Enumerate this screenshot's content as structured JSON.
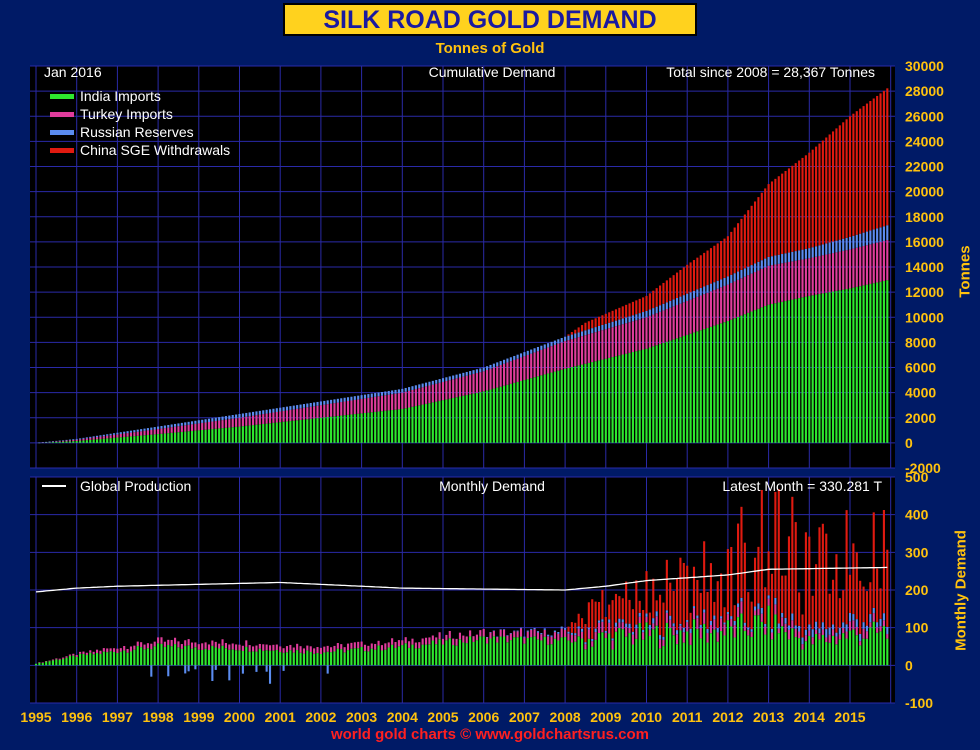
{
  "title": "SILK ROAD GOLD DEMAND",
  "subtitle": "Tonnes of Gold",
  "footer": "world gold charts © www.goldchartsrus.com",
  "colors": {
    "background": "#001a66",
    "plot_bg": "#000000",
    "grid": "#2a2aa8",
    "axis_text": "#ffc20e",
    "india": "#2ee82e",
    "turkey": "#e03c9c",
    "russia": "#5b8cf0",
    "china": "#e01a10",
    "production": "#ffffff"
  },
  "chart_data": [
    {
      "type": "bar",
      "stacked": true,
      "title": "Cumulative Demand",
      "header_left": "Jan  2016",
      "header_right": "Total since 2008 = 28,367 Tonnes",
      "ylabel": "Tonnes",
      "ylim": [
        -2000,
        30000
      ],
      "yticks": [
        "30000",
        "28000",
        "26000",
        "24000",
        "22000",
        "20000",
        "18000",
        "16000",
        "14000",
        "12000",
        "10000",
        "8000",
        "6000",
        "4000",
        "2000",
        "0",
        "-2000"
      ],
      "legend_position": "top-left",
      "x_unit": "month",
      "x_start": "1995-01",
      "x_end": "2015-12",
      "series": [
        {
          "name": "India Imports",
          "anchors": [
            [
              1995.0,
              0
            ],
            [
              1996.0,
              150
            ],
            [
              1998.0,
              700
            ],
            [
              2000.0,
              1300
            ],
            [
              2002.0,
              2000
            ],
            [
              2004.0,
              2700
            ],
            [
              2006.0,
              4100
            ],
            [
              2008.0,
              5900
            ],
            [
              2010.0,
              7500
            ],
            [
              2012.0,
              9700
            ],
            [
              2013.0,
              11000
            ],
            [
              2014.0,
              11700
            ],
            [
              2015.0,
              12300
            ],
            [
              2015.99,
              13000
            ]
          ]
        },
        {
          "name": "Turkey Imports",
          "anchors": [
            [
              1995.0,
              0
            ],
            [
              1996.0,
              100
            ],
            [
              1998.0,
              400
            ],
            [
              2000.0,
              700
            ],
            [
              2002.0,
              1000
            ],
            [
              2004.0,
              1300
            ],
            [
              2006.0,
              1600
            ],
            [
              2008.0,
              2200
            ],
            [
              2010.0,
              2500
            ],
            [
              2012.0,
              2900
            ],
            [
              2013.0,
              3100
            ],
            [
              2014.0,
              3000
            ],
            [
              2015.0,
              3100
            ],
            [
              2015.99,
              3200
            ]
          ]
        },
        {
          "name": "Russian Reserves",
          "anchors": [
            [
              1995.0,
              0
            ],
            [
              1998.0,
              200
            ],
            [
              2000.0,
              300
            ],
            [
              2002.0,
              300
            ],
            [
              2004.0,
              300
            ],
            [
              2006.0,
              300
            ],
            [
              2008.0,
              350
            ],
            [
              2010.0,
              500
            ],
            [
              2012.0,
              650
            ],
            [
              2013.0,
              700
            ],
            [
              2014.0,
              800
            ],
            [
              2015.0,
              1000
            ],
            [
              2015.99,
              1200
            ]
          ]
        },
        {
          "name": "China SGE Withdrawals",
          "anchors": [
            [
              1995.0,
              0
            ],
            [
              2008.0,
              0
            ],
            [
              2008.5,
              600
            ],
            [
              2010.0,
              1200
            ],
            [
              2011.0,
              2300
            ],
            [
              2012.0,
              3200
            ],
            [
              2013.0,
              5800
            ],
            [
              2014.0,
              7600
            ],
            [
              2015.0,
              9600
            ],
            [
              2015.99,
              11000
            ]
          ]
        }
      ]
    },
    {
      "type": "bar",
      "stacked": true,
      "title": "Monthly Demand",
      "header_left": "Global Production",
      "header_right": "Latest Month = 330.281 T",
      "ylabel": "Monthly Demand",
      "ylim": [
        -100,
        500
      ],
      "yticks": [
        "500",
        "400",
        "300",
        "200",
        "100",
        "0",
        "-100"
      ],
      "xticks": [
        "1995",
        "1996",
        "1997",
        "1998",
        "1999",
        "2000",
        "2001",
        "2002",
        "2003",
        "2004",
        "2005",
        "2006",
        "2007",
        "2008",
        "2009",
        "2010",
        "2011",
        "2012",
        "2013",
        "2014",
        "2015"
      ],
      "series": [
        {
          "name": "India Imports",
          "anchors": [
            [
              1995.0,
              5
            ],
            [
              1996.0,
              25
            ],
            [
              1998.0,
              50
            ],
            [
              2000.0,
              45
            ],
            [
              2002.0,
              35
            ],
            [
              2004.0,
              50
            ],
            [
              2006.0,
              70
            ],
            [
              2008.0,
              65
            ],
            [
              2010.0,
              80
            ],
            [
              2012.0,
              90
            ],
            [
              2013.0,
              110
            ],
            [
              2014.0,
              60
            ],
            [
              2015.0,
              80
            ],
            [
              2015.99,
              85
            ]
          ]
        },
        {
          "name": "Turkey Imports",
          "anchors": [
            [
              1995.0,
              0
            ],
            [
              1998.0,
              15
            ],
            [
              2004.0,
              15
            ],
            [
              2008.0,
              20
            ],
            [
              2010.0,
              20
            ],
            [
              2012.0,
              25
            ],
            [
              2014.0,
              15
            ],
            [
              2015.99,
              20
            ]
          ]
        },
        {
          "name": "Russian Reserves",
          "anchors": [
            [
              1995.0,
              0
            ],
            [
              2006.0,
              0
            ],
            [
              2008.0,
              5
            ],
            [
              2010.0,
              10
            ],
            [
              2012.0,
              8
            ],
            [
              2014.0,
              15
            ],
            [
              2015.99,
              20
            ]
          ]
        },
        {
          "name": "China SGE Withdrawals",
          "anchors": [
            [
              1995.0,
              0
            ],
            [
              2008.0,
              0
            ],
            [
              2008.5,
              60
            ],
            [
              2010.0,
              80
            ],
            [
              2011.0,
              120
            ],
            [
              2012.0,
              110
            ],
            [
              2013.0,
              230
            ],
            [
              2014.0,
              150
            ],
            [
              2015.0,
              190
            ],
            [
              2015.99,
              200
            ]
          ]
        }
      ],
      "production": {
        "name": "Global Production",
        "anchors": [
          [
            1995.0,
            195
          ],
          [
            1996.0,
            205
          ],
          [
            1997.0,
            210
          ],
          [
            1999.0,
            215
          ],
          [
            2001.0,
            220
          ],
          [
            2002.0,
            215
          ],
          [
            2004.0,
            205
          ],
          [
            2008.0,
            200
          ],
          [
            2009.0,
            210
          ],
          [
            2010.0,
            225
          ],
          [
            2012.0,
            240
          ],
          [
            2013.0,
            255
          ],
          [
            2015.99,
            260
          ]
        ]
      }
    }
  ]
}
